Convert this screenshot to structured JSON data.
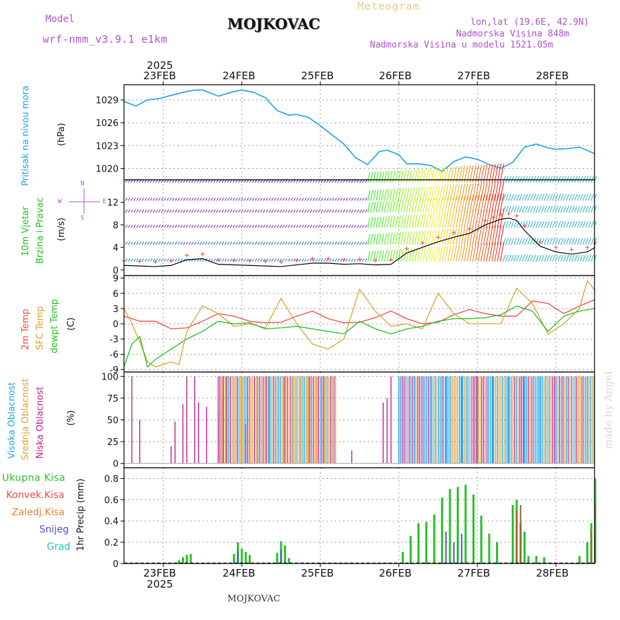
{
  "header": {
    "model_label": "Model",
    "model_name": "wrf-nmm_v3.9.1  e1km",
    "title": "MOJKOVAC",
    "meteogram": "Meteogram",
    "lonlat": "lon,lat (19.6E, 42.9N)",
    "elevation": "Nadmorska Visina 848m",
    "model_elevation": "Nadmorska Visina u modelu 1521.05m"
  },
  "footer": {
    "station": "MOJKOVAC",
    "watermark": "made by Angel"
  },
  "axis": {
    "year_top": "2025",
    "year_bottom": "2025",
    "dates": [
      "23FEB",
      "24FEB",
      "25FEB",
      "26FEB",
      "27FEB",
      "28FEB"
    ]
  },
  "colors": {
    "pressure": "#1aa3e8",
    "temp2m": "#f04848",
    "sfc": "#e0a030",
    "dew": "#20c020",
    "wind_label": "#20c020",
    "compass": "#b050d0",
    "high_cloud": "#1aa3e8",
    "mid_cloud": "#e0a030",
    "low_cloud": "#c0208a",
    "total_rain": "#28c028",
    "conv_rain": "#f04848",
    "frozen_rain": "#f08030",
    "snow": "#5050e0",
    "hail": "#20c0c0"
  },
  "panels": {
    "pressure": {
      "label": "Pritisak na nivou mora",
      "unit": "(hPa)"
    },
    "wind": {
      "label1": "10m Vjetar",
      "label2": "Brzina i Pravac",
      "unit": "(m/s)",
      "compass": {
        "n": "N",
        "s": "S",
        "e": "E",
        "w": "W"
      }
    },
    "temp": {
      "label1": "2m Temp",
      "label2": "SFC Temp",
      "label3": "dewpt Temp",
      "unit": "(C)"
    },
    "cloud": {
      "label1": "Visoka Oblacnost",
      "label2": "Srednja Oblacnost",
      "label3": "Niska Oblacnost",
      "unit": "(%)"
    },
    "precip": {
      "unit": "1hr Precip (mm)",
      "legend": [
        "Ukupna Kisa",
        "Konvek.Kisa",
        "Zaledj.Kisa",
        "Snijeg",
        "Grad"
      ]
    }
  },
  "chart_data": [
    {
      "type": "line",
      "title": "Pritisak na nivou mora",
      "ylabel": "(hPa)",
      "x_unit": "days from 23FEB 00UTC",
      "ylim": [
        1018.5,
        1031
      ],
      "yticks": [
        "1020",
        "1023",
        "1026",
        "1029"
      ],
      "series": [
        {
          "name": "Pritisak na nivou mora",
          "x": [
            -0.5,
            -0.35,
            -0.2,
            -0.05,
            0.1,
            0.25,
            0.4,
            0.5,
            0.7,
            0.9,
            1.0,
            1.15,
            1.3,
            1.45,
            1.6,
            1.7,
            1.85,
            2.0,
            2.15,
            2.3,
            2.45,
            2.6,
            2.75,
            2.85,
            3.0,
            3.1,
            3.25,
            3.4,
            3.55,
            3.7,
            3.85,
            4.0,
            4.15,
            4.3,
            4.45,
            4.6,
            4.75,
            4.9,
            5.0,
            5.15,
            5.3,
            5.5
          ],
          "values": [
            1028.8,
            1028.2,
            1029.0,
            1029.2,
            1029.6,
            1030.0,
            1030.3,
            1030.3,
            1029.5,
            1030.1,
            1030.3,
            1030.0,
            1029.3,
            1027.6,
            1027.0,
            1027.1,
            1026.7,
            1025.6,
            1024.4,
            1023.2,
            1021.4,
            1020.5,
            1022.2,
            1022.4,
            1021.8,
            1020.6,
            1020.6,
            1020.4,
            1019.6,
            1020.9,
            1021.5,
            1021.2,
            1020.5,
            1020.0,
            1020.8,
            1022.8,
            1023.2,
            1022.7,
            1022.5,
            1022.6,
            1022.8,
            1021.9
          ]
        }
      ]
    },
    {
      "type": "line",
      "title": "10m Vjetar Brzina i Pravac",
      "ylabel": "(m/s)",
      "ylim": [
        -1,
        16
      ],
      "yticks": [
        "0",
        "4",
        "8",
        "12"
      ],
      "series": [
        {
          "name": "10m Vjetar",
          "x": [
            -0.5,
            -0.3,
            -0.1,
            0.1,
            0.3,
            0.5,
            0.7,
            0.9,
            1.1,
            1.3,
            1.5,
            1.7,
            1.9,
            2.1,
            2.3,
            2.5,
            2.7,
            2.9,
            3.1,
            3.3,
            3.5,
            3.7,
            3.9,
            4.1,
            4.2,
            4.3,
            4.4,
            4.5,
            4.6,
            4.8,
            5.0,
            5.2,
            5.4,
            5.5
          ],
          "values": [
            0.8,
            0.7,
            0.6,
            0.8,
            1.8,
            2.0,
            1.0,
            0.9,
            0.8,
            0.7,
            0.6,
            0.9,
            1.2,
            1.2,
            1.0,
            1.1,
            0.9,
            1.0,
            3.0,
            4.0,
            5.0,
            5.8,
            6.5,
            8.0,
            8.5,
            9.0,
            9.2,
            8.8,
            7.0,
            4.2,
            3.2,
            2.8,
            3.2,
            4.0
          ]
        }
      ]
    },
    {
      "type": "line",
      "title": "2m Temp / SFC Temp / dewpt Temp",
      "ylabel": "(C)",
      "ylim": [
        -9.5,
        9.5
      ],
      "yticks": [
        "-9",
        "-6",
        "-3",
        "0",
        "3",
        "6",
        "9"
      ],
      "series": [
        {
          "name": "2m Temp",
          "x": [
            -0.5,
            -0.4,
            -0.3,
            -0.1,
            0.1,
            0.3,
            0.5,
            0.7,
            0.9,
            1.1,
            1.3,
            1.5,
            1.7,
            1.9,
            2.1,
            2.3,
            2.5,
            2.7,
            2.9,
            3.1,
            3.3,
            3.5,
            3.7,
            3.9,
            4.1,
            4.3,
            4.5,
            4.7,
            4.9,
            5.1,
            5.3,
            5.5
          ],
          "values": [
            1.5,
            1.0,
            0.5,
            0.5,
            -1.0,
            -0.8,
            0.5,
            2.0,
            1.5,
            0.5,
            0.2,
            0.3,
            1.5,
            2.5,
            1.0,
            0.2,
            0.3,
            1.2,
            2.5,
            1.0,
            0.0,
            0.3,
            1.8,
            2.8,
            2.0,
            1.5,
            1.5,
            4.5,
            4.0,
            2.0,
            3.5,
            4.8
          ]
        },
        {
          "name": "SFC Temp",
          "x": [
            -0.5,
            -0.4,
            -0.3,
            -0.2,
            -0.1,
            0.1,
            0.2,
            0.3,
            0.5,
            0.7,
            0.9,
            1.1,
            1.3,
            1.5,
            1.7,
            1.9,
            2.1,
            2.3,
            2.5,
            2.7,
            2.9,
            3.1,
            3.3,
            3.5,
            3.7,
            3.9,
            4.1,
            4.3,
            4.5,
            4.7,
            4.9,
            5.1,
            5.3,
            5.4,
            5.5
          ],
          "values": [
            3.0,
            0.0,
            -3.5,
            -7.5,
            -8.5,
            -7.5,
            -8.0,
            -1.5,
            3.5,
            2.0,
            -0.5,
            0.0,
            -0.8,
            5.0,
            0.0,
            -4.0,
            -5.0,
            -3.0,
            6.8,
            2.5,
            -0.5,
            0.0,
            -1.0,
            6.0,
            2.0,
            0.0,
            0.0,
            0.0,
            7.0,
            4.0,
            -2.0,
            0.0,
            3.0,
            8.5,
            6.5
          ]
        },
        {
          "name": "dewpt Temp",
          "x": [
            -0.5,
            -0.4,
            -0.3,
            -0.2,
            -0.1,
            0.1,
            0.3,
            0.5,
            0.7,
            0.9,
            1.1,
            1.3,
            1.5,
            1.7,
            1.9,
            2.1,
            2.3,
            2.5,
            2.7,
            2.9,
            3.1,
            3.3,
            3.5,
            3.7,
            3.9,
            4.1,
            4.3,
            4.5,
            4.7,
            4.9,
            5.1,
            5.3,
            5.5
          ],
          "values": [
            -8.5,
            -4.0,
            -2.5,
            -8.5,
            -7.0,
            -5.0,
            -3.0,
            -1.5,
            0.5,
            0.0,
            0.2,
            -1.0,
            -0.8,
            -0.5,
            -1.0,
            -1.5,
            -2.0,
            0.5,
            -1.0,
            -2.0,
            -1.0,
            -0.5,
            0.5,
            1.0,
            1.0,
            1.2,
            1.8,
            3.5,
            2.5,
            -1.5,
            1.5,
            2.5,
            3.0
          ]
        }
      ]
    },
    {
      "type": "bar",
      "title": "Oblacnost",
      "ylabel": "(%)",
      "ylim": [
        -5,
        105
      ],
      "yticks": [
        "0",
        "25",
        "50",
        "75",
        "100"
      ],
      "series": [
        {
          "name": "Niska Oblacnost",
          "x": [
            -0.4,
            -0.3,
            0.1,
            0.15,
            0.25,
            0.3,
            0.4,
            0.45,
            0.55,
            0.7,
            0.75,
            1.05,
            2.4,
            2.8,
            2.85,
            2.9
          ],
          "values": [
            100,
            50,
            20,
            48,
            68,
            100,
            100,
            70,
            65,
            60,
            75,
            45,
            15,
            70,
            75,
            100
          ]
        },
        {
          "name": "Srednja Oblacnost",
          "x": [
            0.75,
            0.8,
            0.9,
            1.0,
            1.1,
            1.2,
            1.3,
            1.35,
            1.45,
            1.55,
            1.65,
            1.75,
            1.85,
            1.95,
            2.05,
            2.15
          ],
          "values": [
            100,
            100,
            100,
            100,
            100,
            100,
            100,
            100,
            100,
            100,
            100,
            100,
            100,
            100,
            100,
            100
          ]
        },
        {
          "name": "Visoka Oblacnost",
          "x": [
            3.0,
            3.2,
            3.4,
            3.6,
            3.8,
            4.0,
            4.2,
            4.4,
            4.6,
            4.8,
            5.0,
            5.2,
            5.4
          ],
          "values": [
            100,
            100,
            100,
            100,
            100,
            100,
            100,
            100,
            100,
            100,
            100,
            100,
            100
          ]
        }
      ]
    },
    {
      "type": "bar",
      "title": "1hr Precip",
      "ylabel": "1hr Precip (mm)",
      "ylim": [
        0,
        0.9
      ],
      "yticks": [
        "0",
        "0.2",
        "0.4",
        "0.6",
        "0.8"
      ],
      "series": [
        {
          "name": "Ukupna Kisa",
          "x": [
            0.2,
            0.25,
            0.3,
            0.35,
            0.9,
            0.95,
            1.0,
            1.05,
            1.1,
            1.45,
            1.5,
            1.55,
            1.6,
            3.05,
            3.15,
            3.25,
            3.35,
            3.45,
            3.55,
            3.65,
            3.75,
            3.85,
            3.95,
            4.05,
            4.15,
            4.25,
            4.45,
            4.5,
            4.55,
            4.6,
            4.65,
            4.75,
            4.85,
            5.3,
            5.4,
            5.45,
            5.5
          ],
          "values": [
            0.03,
            0.06,
            0.08,
            0.09,
            0.09,
            0.2,
            0.14,
            0.11,
            0.08,
            0.1,
            0.21,
            0.17,
            0.05,
            0.11,
            0.26,
            0.38,
            0.39,
            0.46,
            0.62,
            0.7,
            0.72,
            0.74,
            0.65,
            0.45,
            0.28,
            0.2,
            0.55,
            0.6,
            0.38,
            0.3,
            0.07,
            0.07,
            0.06,
            0.07,
            0.2,
            0.38,
            0.8
          ]
        },
        {
          "name": "Konvek.Kisa",
          "x": [
            4.5,
            4.55,
            5.45,
            5.5
          ],
          "values": [
            0.5,
            0.55,
            0.3,
            0.55
          ]
        },
        {
          "name": "Snijeg",
          "x": [
            0.95,
            1.5,
            3.6,
            3.7,
            3.8
          ],
          "values": [
            0.12,
            0.13,
            0.3,
            0.2,
            0.28
          ]
        }
      ]
    }
  ]
}
